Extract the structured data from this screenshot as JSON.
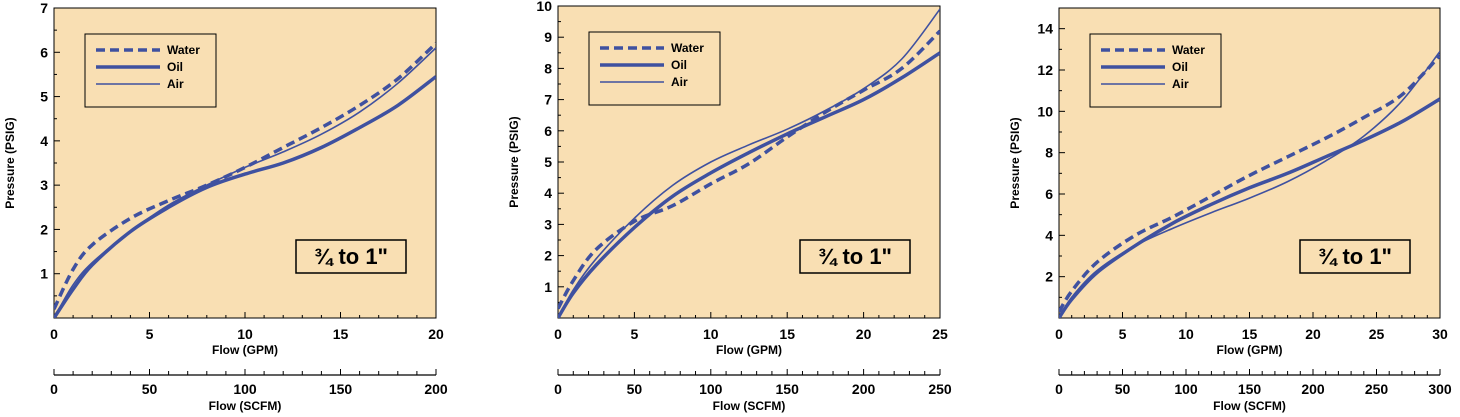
{
  "chart_data": [
    {
      "type": "line",
      "xlabel": "Flow (GPM)",
      "ylabel": "Pressure (PSIG)",
      "xlim": [
        0,
        20
      ],
      "ylim": [
        0,
        7
      ],
      "x_ticks": [
        "0",
        "5",
        "10",
        "15",
        "20"
      ],
      "y_ticks": [
        "1",
        "2",
        "3",
        "4",
        "5",
        "6",
        "7"
      ],
      "secondary_axis": {
        "label": "Flow (SCFM)",
        "range": [
          0,
          200
        ],
        "ticks": [
          "0",
          "50",
          "100",
          "150",
          "200"
        ]
      },
      "badge": "¾ to 1\"",
      "legend": [
        "Water",
        "Oil",
        "Air"
      ],
      "legend_position": "top-left",
      "plot_color": "#f9dfb3",
      "line_color": "#3f51a0",
      "series": [
        {
          "name": "Water",
          "style": "dashed",
          "x": [
            0,
            1,
            2,
            4,
            6,
            8,
            10,
            12,
            14,
            16,
            18,
            20
          ],
          "values": [
            0.2,
            1.1,
            1.65,
            2.25,
            2.65,
            3.0,
            3.4,
            3.85,
            4.3,
            4.8,
            5.4,
            6.2
          ]
        },
        {
          "name": "Oil",
          "style": "thick",
          "x": [
            0,
            1,
            2,
            4,
            6,
            8,
            10,
            12,
            14,
            16,
            18,
            20
          ],
          "values": [
            0.0,
            0.65,
            1.2,
            1.95,
            2.5,
            2.95,
            3.25,
            3.5,
            3.85,
            4.3,
            4.8,
            5.45
          ]
        },
        {
          "name": "Air",
          "style": "thin",
          "x": [
            0,
            1,
            2,
            4,
            6,
            8,
            10,
            12,
            14,
            16,
            18,
            20
          ],
          "values": [
            0.0,
            0.75,
            1.25,
            1.95,
            2.55,
            3.0,
            3.4,
            3.75,
            4.15,
            4.65,
            5.3,
            6.1
          ]
        }
      ]
    },
    {
      "type": "line",
      "xlabel": "Flow (GPM)",
      "ylabel": "Pressure (PSIG)",
      "xlim": [
        0,
        25
      ],
      "ylim": [
        0,
        10
      ],
      "x_ticks": [
        "0",
        "5",
        "10",
        "15",
        "20",
        "25"
      ],
      "y_ticks": [
        "1",
        "2",
        "3",
        "4",
        "5",
        "6",
        "7",
        "8",
        "9",
        "10"
      ],
      "secondary_axis": {
        "label": "Flow (SCFM)",
        "range": [
          0,
          250
        ],
        "ticks": [
          "0",
          "50",
          "100",
          "150",
          "200",
          "250"
        ]
      },
      "badge": "¾ to 1\"",
      "legend": [
        "Water",
        "Oil",
        "Air"
      ],
      "legend_position": "top-left",
      "plot_color": "#f9dfb3",
      "line_color": "#3f51a0",
      "series": [
        {
          "name": "Water",
          "style": "dashed",
          "x": [
            0,
            1,
            2.5,
            5,
            7.5,
            10,
            12.5,
            15,
            17.5,
            20,
            22.5,
            25
          ],
          "values": [
            0.3,
            1.2,
            2.2,
            3.1,
            3.6,
            4.3,
            4.95,
            5.8,
            6.6,
            7.3,
            8.0,
            9.2
          ]
        },
        {
          "name": "Oil",
          "style": "thick",
          "x": [
            0,
            1,
            2.5,
            5,
            7.5,
            10,
            12.5,
            15,
            17.5,
            20,
            22.5,
            25
          ],
          "values": [
            0.0,
            0.8,
            1.7,
            2.9,
            3.9,
            4.65,
            5.3,
            5.9,
            6.45,
            7.0,
            7.7,
            8.5
          ]
        },
        {
          "name": "Air",
          "style": "thin",
          "x": [
            0,
            1,
            2.5,
            5,
            7.5,
            10,
            12.5,
            15,
            17.5,
            20,
            22.5,
            25
          ],
          "values": [
            0.0,
            0.9,
            1.9,
            3.2,
            4.25,
            5.0,
            5.55,
            6.05,
            6.65,
            7.35,
            8.3,
            9.9
          ]
        }
      ]
    },
    {
      "type": "line",
      "xlabel": "Flow (GPM)",
      "ylabel": "Pressure (PSIG)",
      "xlim": [
        0,
        30
      ],
      "ylim": [
        0,
        15
      ],
      "x_ticks": [
        "0",
        "5",
        "10",
        "15",
        "20",
        "25",
        "30"
      ],
      "y_ticks": [
        "2",
        "4",
        "6",
        "8",
        "10",
        "12",
        "14"
      ],
      "secondary_axis": {
        "label": "Flow (SCFM)",
        "range": [
          0,
          300
        ],
        "ticks": [
          "0",
          "50",
          "100",
          "150",
          "200",
          "250",
          "300"
        ]
      },
      "badge": "¾ to 1\"",
      "legend": [
        "Water",
        "Oil",
        "Air"
      ],
      "legend_position": "top-left",
      "plot_color": "#f9dfb3",
      "line_color": "#3f51a0",
      "series": [
        {
          "name": "Water",
          "style": "dashed",
          "x": [
            0,
            1,
            3,
            6,
            9,
            12,
            15,
            18,
            21,
            24,
            27,
            30
          ],
          "values": [
            0.3,
            1.3,
            2.7,
            4.0,
            4.9,
            5.9,
            6.9,
            7.8,
            8.7,
            9.7,
            10.8,
            12.7
          ]
        },
        {
          "name": "Oil",
          "style": "thick",
          "x": [
            0,
            1,
            3,
            6,
            9,
            12,
            15,
            18,
            21,
            24,
            27,
            30
          ],
          "values": [
            0.0,
            0.9,
            2.2,
            3.5,
            4.6,
            5.5,
            6.3,
            7.0,
            7.8,
            8.6,
            9.5,
            10.6
          ]
        },
        {
          "name": "Air",
          "style": "thin",
          "x": [
            0,
            1,
            3,
            6,
            9,
            12,
            15,
            18,
            21,
            24,
            27,
            30
          ],
          "values": [
            0.0,
            1.0,
            2.3,
            3.5,
            4.35,
            5.1,
            5.8,
            6.6,
            7.6,
            8.8,
            10.5,
            12.9
          ]
        }
      ]
    }
  ]
}
